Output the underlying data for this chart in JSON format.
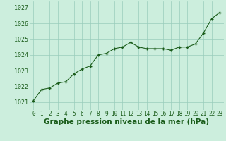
{
  "x": [
    0,
    1,
    2,
    3,
    4,
    5,
    6,
    7,
    8,
    9,
    10,
    11,
    12,
    13,
    14,
    15,
    16,
    17,
    18,
    19,
    20,
    21,
    22,
    23
  ],
  "y": [
    1021.1,
    1021.8,
    1021.9,
    1022.2,
    1022.3,
    1022.8,
    1023.1,
    1023.3,
    1024.0,
    1024.1,
    1024.4,
    1024.5,
    1024.8,
    1024.5,
    1024.4,
    1024.4,
    1024.4,
    1024.3,
    1024.5,
    1024.5,
    1024.7,
    1025.4,
    1026.3,
    1026.7
  ],
  "line_color": "#1a5c1a",
  "marker": "+",
  "marker_size": 3,
  "marker_linewidth": 1.0,
  "linewidth": 0.8,
  "background_color": "#cceedd",
  "grid_color": "#99ccbb",
  "xlabel": "Graphe pression niveau de la mer (hPa)",
  "xlabel_fontsize": 7.5,
  "xlabel_color": "#1a5c1a",
  "ylabel_ticks": [
    1021,
    1022,
    1023,
    1024,
    1025,
    1026,
    1027
  ],
  "ylim": [
    1020.5,
    1027.4
  ],
  "xlim": [
    -0.5,
    23.5
  ],
  "ytick_fontsize": 6,
  "xtick_fontsize": 5.5
}
